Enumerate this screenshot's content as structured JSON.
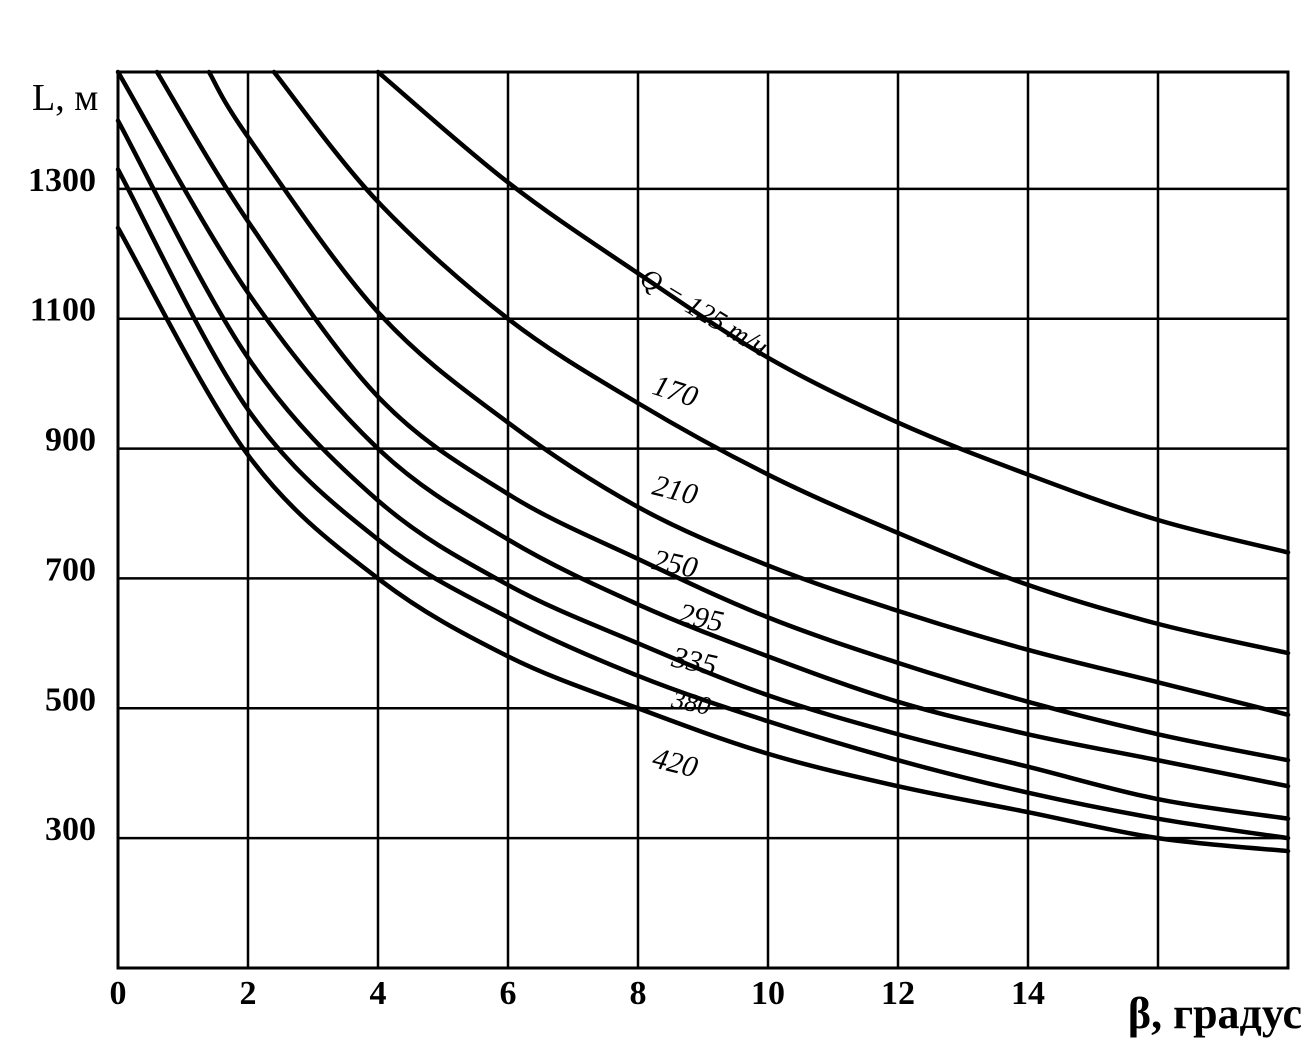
{
  "chart_data": {
    "type": "line",
    "xlabel": "β, градус",
    "ylabel": "L, м",
    "xlim": [
      0,
      18
    ],
    "ylim": [
      100,
      1480
    ],
    "x_ticks": [
      "0",
      "2",
      "4",
      "6",
      "8",
      "10",
      "12",
      "14"
    ],
    "y_ticks": [
      "300",
      "500",
      "700",
      "900",
      "1100",
      "1300"
    ],
    "grid": true,
    "series": [
      {
        "name": "Q = 125 т/ч",
        "label": "Q = 125 т/ч",
        "x": [
          4,
          6,
          8,
          10,
          12,
          14,
          16,
          18
        ],
        "y": [
          1480,
          1310,
          1170,
          1040,
          940,
          860,
          790,
          740
        ]
      },
      {
        "name": "170",
        "label": "170",
        "x": [
          2.4,
          4,
          6,
          8,
          10,
          12,
          14,
          16,
          18
        ],
        "y": [
          1480,
          1280,
          1100,
          970,
          860,
          770,
          690,
          630,
          585
        ]
      },
      {
        "name": "210",
        "label": "210",
        "x": [
          1.4,
          2,
          4,
          6,
          8,
          10,
          12,
          14,
          16,
          18
        ],
        "y": [
          1480,
          1380,
          1110,
          940,
          810,
          720,
          650,
          590,
          540,
          490
        ]
      },
      {
        "name": "250",
        "label": "250",
        "x": [
          0.6,
          2,
          4,
          6,
          8,
          10,
          12,
          14,
          16,
          18
        ],
        "y": [
          1480,
          1250,
          980,
          830,
          730,
          640,
          570,
          510,
          460,
          420
        ]
      },
      {
        "name": "295",
        "label": "295",
        "x": [
          0,
          2,
          4,
          6,
          8,
          10,
          12,
          14,
          16,
          18
        ],
        "y": [
          1480,
          1140,
          900,
          760,
          660,
          580,
          510,
          460,
          420,
          380
        ]
      },
      {
        "name": "335",
        "label": "335",
        "x": [
          0,
          2,
          4,
          6,
          8,
          10,
          12,
          14,
          16,
          18
        ],
        "y": [
          1405,
          1040,
          820,
          690,
          600,
          520,
          460,
          410,
          360,
          330
        ]
      },
      {
        "name": "380",
        "label": "380",
        "x": [
          0,
          2,
          4,
          6,
          8,
          10,
          12,
          14,
          16,
          18
        ],
        "y": [
          1330,
          960,
          760,
          640,
          550,
          480,
          420,
          370,
          330,
          300
        ]
      },
      {
        "name": "420",
        "label": "420",
        "x": [
          0,
          2,
          4,
          6,
          8,
          10,
          12,
          14,
          16,
          18
        ],
        "y": [
          1240,
          890,
          700,
          580,
          500,
          430,
          380,
          340,
          300,
          280
        ]
      }
    ]
  }
}
